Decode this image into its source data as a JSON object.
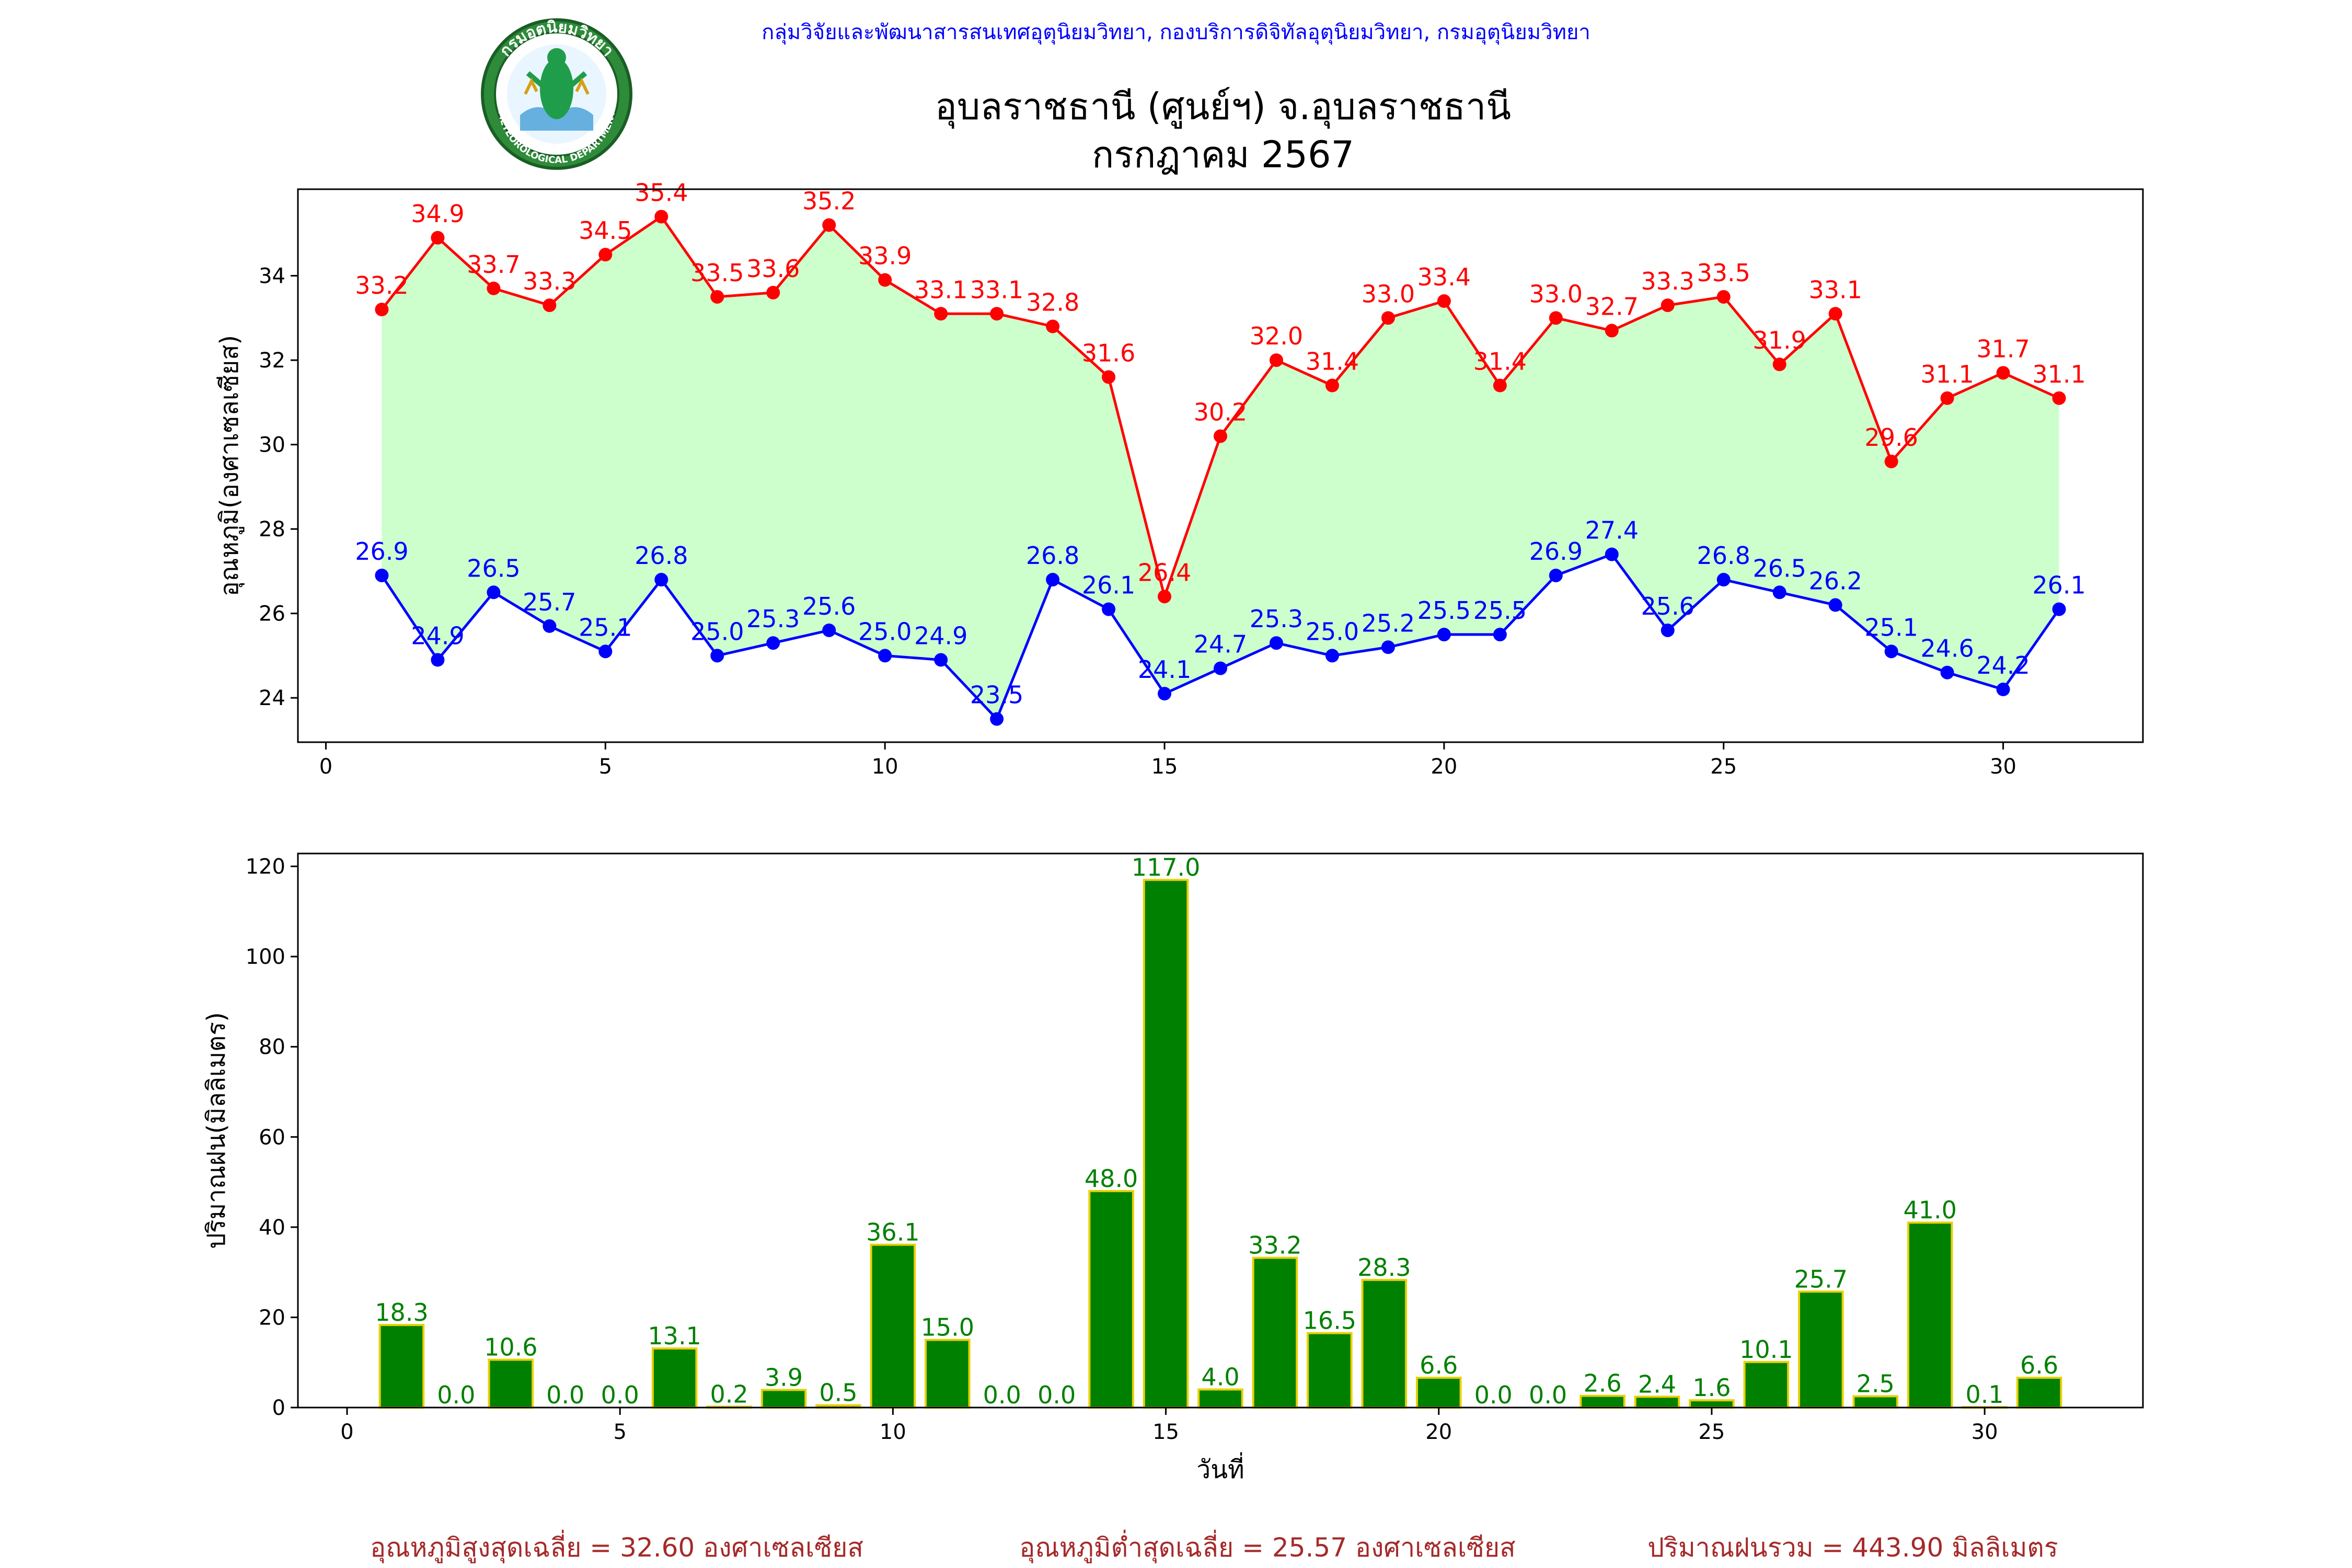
{
  "header": {
    "credit": "กลุ่มวิจัยและพัฒนาสารสนเทศอุตุนิยมวิทยา, กองบริการดิจิทัลอุตุนิยมวิทยา, กรมอุตุนิยมวิทยา",
    "title": "อุบลราชธานี (ศูนย์ฯ) จ.อุบลราชธานี",
    "subtitle": "กรกฎาคม 2567",
    "logo_text": "กรมอุตุนิยมวิทยา",
    "logo_text_en": "METEOROLOGICAL DEPARTMENT"
  },
  "colors": {
    "tmax": "#ff0000",
    "tmin": "#0000ff",
    "fill": "#ccffcc",
    "bar": "#008000",
    "bar_edge": "#e8d000",
    "bar_label": "#008000",
    "credit": "#0000ff",
    "footer": "#a52a2a"
  },
  "footer": {
    "tmax_avg": "อุณหภูมิสูงสุดเฉลี่ย = 32.60 องศาเซลเซียส",
    "tmin_avg": "อุณหภูมิต่ำสุดเฉลี่ย = 25.57 องศาเซลเซียส",
    "rain_total": "ปริมาณฝนรวม = 443.90 มิลลิเมตร"
  },
  "chart_data": [
    {
      "type": "line",
      "ylabel": "อุณหภูมิ(องศาเซลเซียส)",
      "xlabel": "",
      "x": [
        1,
        2,
        3,
        4,
        5,
        6,
        7,
        8,
        9,
        10,
        11,
        12,
        13,
        14,
        15,
        16,
        17,
        18,
        19,
        20,
        21,
        22,
        23,
        24,
        25,
        26,
        27,
        28,
        29,
        30,
        31
      ],
      "series": [
        {
          "values": [
            33.2,
            34.9,
            33.7,
            33.3,
            34.5,
            35.4,
            33.5,
            33.6,
            35.2,
            33.9,
            33.1,
            33.1,
            32.8,
            31.6,
            26.4,
            30.2,
            32.0,
            31.4,
            33.0,
            33.4,
            31.4,
            33.0,
            32.7,
            33.3,
            33.5,
            31.9,
            33.1,
            29.6,
            31.1,
            31.7,
            31.1
          ]
        },
        {
          "values": [
            26.9,
            24.9,
            26.5,
            25.7,
            25.1,
            26.8,
            25.0,
            25.3,
            25.6,
            25.0,
            24.9,
            23.5,
            26.8,
            26.1,
            24.1,
            24.7,
            25.3,
            25.0,
            25.2,
            25.5,
            25.5,
            26.9,
            27.4,
            25.6,
            26.8,
            26.5,
            26.2,
            25.1,
            24.6,
            24.2,
            26.1
          ]
        }
      ],
      "xlim": [
        -0.5,
        32.5
      ],
      "ylim": [
        22.95,
        36.05
      ],
      "xticks": [
        0,
        5,
        10,
        15,
        20,
        25,
        30
      ],
      "yticks": [
        24,
        26,
        28,
        30,
        32,
        34
      ],
      "grid": false
    },
    {
      "type": "bar",
      "ylabel": "ปริมาณฝน(มิลลิเมตร)",
      "xlabel": "วันที่",
      "x": [
        1,
        2,
        3,
        4,
        5,
        6,
        7,
        8,
        9,
        10,
        11,
        12,
        13,
        14,
        15,
        16,
        17,
        18,
        19,
        20,
        21,
        22,
        23,
        24,
        25,
        26,
        27,
        28,
        29,
        30,
        31
      ],
      "values": [
        18.3,
        0.0,
        10.6,
        0.0,
        0.0,
        13.1,
        0.2,
        3.9,
        0.5,
        36.1,
        15.0,
        0.0,
        0.0,
        48.0,
        117.0,
        4.0,
        33.2,
        16.5,
        28.3,
        6.6,
        0.0,
        0.0,
        2.6,
        2.4,
        1.6,
        10.1,
        25.7,
        2.5,
        41.0,
        0.1,
        6.6
      ],
      "xlim": [
        -0.9,
        32.9
      ],
      "ylim": [
        0,
        122.85
      ],
      "xticks": [
        0,
        5,
        10,
        15,
        20,
        25,
        30
      ],
      "yticks": [
        0,
        20,
        40,
        60,
        80,
        100,
        120
      ],
      "grid": false
    }
  ]
}
